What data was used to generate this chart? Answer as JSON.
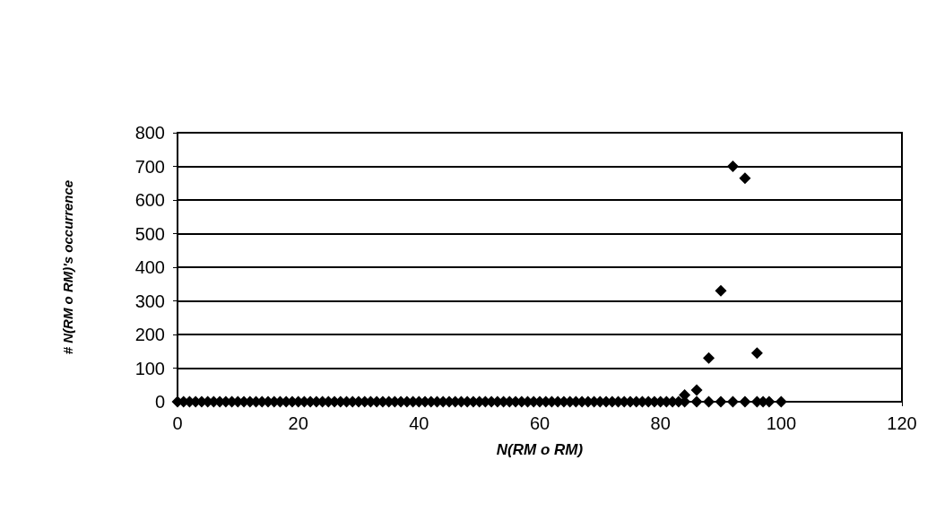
{
  "chart_data": {
    "type": "scatter",
    "xlabel": "N(RM o RM)",
    "ylabel": "# N(RM o RM)'s occurrence",
    "series": [
      {
        "color": "#000000",
        "x": [
          0,
          1,
          2,
          3,
          4,
          5,
          6,
          7,
          8,
          9,
          10,
          11,
          12,
          13,
          14,
          15,
          16,
          17,
          18,
          19,
          20,
          21,
          22,
          23,
          24,
          25,
          26,
          27,
          28,
          29,
          30,
          31,
          32,
          33,
          34,
          35,
          36,
          37,
          38,
          39,
          40,
          41,
          42,
          43,
          44,
          45,
          46,
          47,
          48,
          49,
          50,
          51,
          52,
          53,
          54,
          55,
          56,
          57,
          58,
          59,
          60,
          61,
          62,
          63,
          64,
          65,
          66,
          67,
          68,
          69,
          70,
          71,
          72,
          73,
          74,
          75,
          76,
          77,
          78,
          79,
          80,
          81,
          82,
          83,
          84,
          86,
          88,
          90,
          92,
          94,
          96,
          97,
          98,
          100,
          84,
          86,
          88,
          90,
          92,
          94,
          96
        ],
        "values": [
          0,
          0,
          0,
          0,
          0,
          0,
          0,
          0,
          0,
          0,
          0,
          0,
          0,
          0,
          0,
          0,
          0,
          0,
          0,
          0,
          0,
          0,
          0,
          0,
          0,
          0,
          0,
          0,
          0,
          0,
          0,
          0,
          0,
          0,
          0,
          0,
          0,
          0,
          0,
          0,
          0,
          0,
          0,
          0,
          0,
          0,
          0,
          0,
          0,
          0,
          0,
          0,
          0,
          0,
          0,
          0,
          0,
          0,
          0,
          0,
          0,
          0,
          0,
          0,
          0,
          0,
          0,
          0,
          0,
          0,
          0,
          0,
          0,
          0,
          0,
          0,
          0,
          0,
          0,
          0,
          0,
          0,
          0,
          0,
          0,
          0,
          0,
          0,
          0,
          0,
          0,
          0,
          0,
          0,
          20,
          35,
          130,
          330,
          700,
          665,
          145
        ]
      }
    ],
    "xlim": [
      0,
      120
    ],
    "xticks": [
      0,
      20,
      40,
      60,
      80,
      100,
      120
    ],
    "ylim": [
      0,
      800
    ],
    "yticks": [
      0,
      100,
      200,
      300,
      400,
      500,
      600,
      700,
      800
    ],
    "grid": "y",
    "marker": "diamond"
  }
}
